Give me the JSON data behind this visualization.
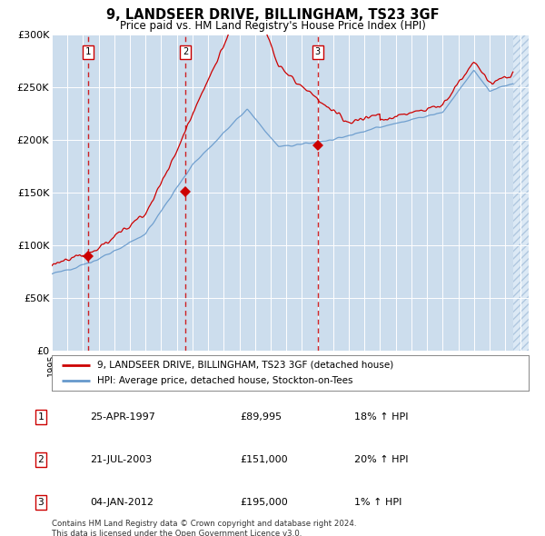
{
  "title": "9, LANDSEER DRIVE, BILLINGHAM, TS23 3GF",
  "subtitle": "Price paid vs. HM Land Registry's House Price Index (HPI)",
  "background_color": "#dce9f5",
  "plot_bg_color": "#ccdded",
  "ylabel": "",
  "sales": [
    {
      "date": 1997.32,
      "price": 89995,
      "label": "1"
    },
    {
      "date": 2003.55,
      "price": 151000,
      "label": "2"
    },
    {
      "date": 2012.01,
      "price": 195000,
      "label": "3"
    }
  ],
  "table_rows": [
    [
      "1",
      "25-APR-1997",
      "£89,995",
      "18% ↑ HPI"
    ],
    [
      "2",
      "21-JUL-2003",
      "£151,000",
      "20% ↑ HPI"
    ],
    [
      "3",
      "04-JAN-2012",
      "£195,000",
      "1% ↑ HPI"
    ]
  ],
  "legend_line1": "9, LANDSEER DRIVE, BILLINGHAM, TS23 3GF (detached house)",
  "legend_line2": "HPI: Average price, detached house, Stockton-on-Tees",
  "footer": "Contains HM Land Registry data © Crown copyright and database right 2024.\nThis data is licensed under the Open Government Licence v3.0.",
  "line_color_red": "#cc0000",
  "line_color_blue": "#6699cc",
  "ylim": [
    0,
    300000
  ],
  "xmin": 1995.0,
  "xmax": 2025.5,
  "data_end": 2024.5
}
